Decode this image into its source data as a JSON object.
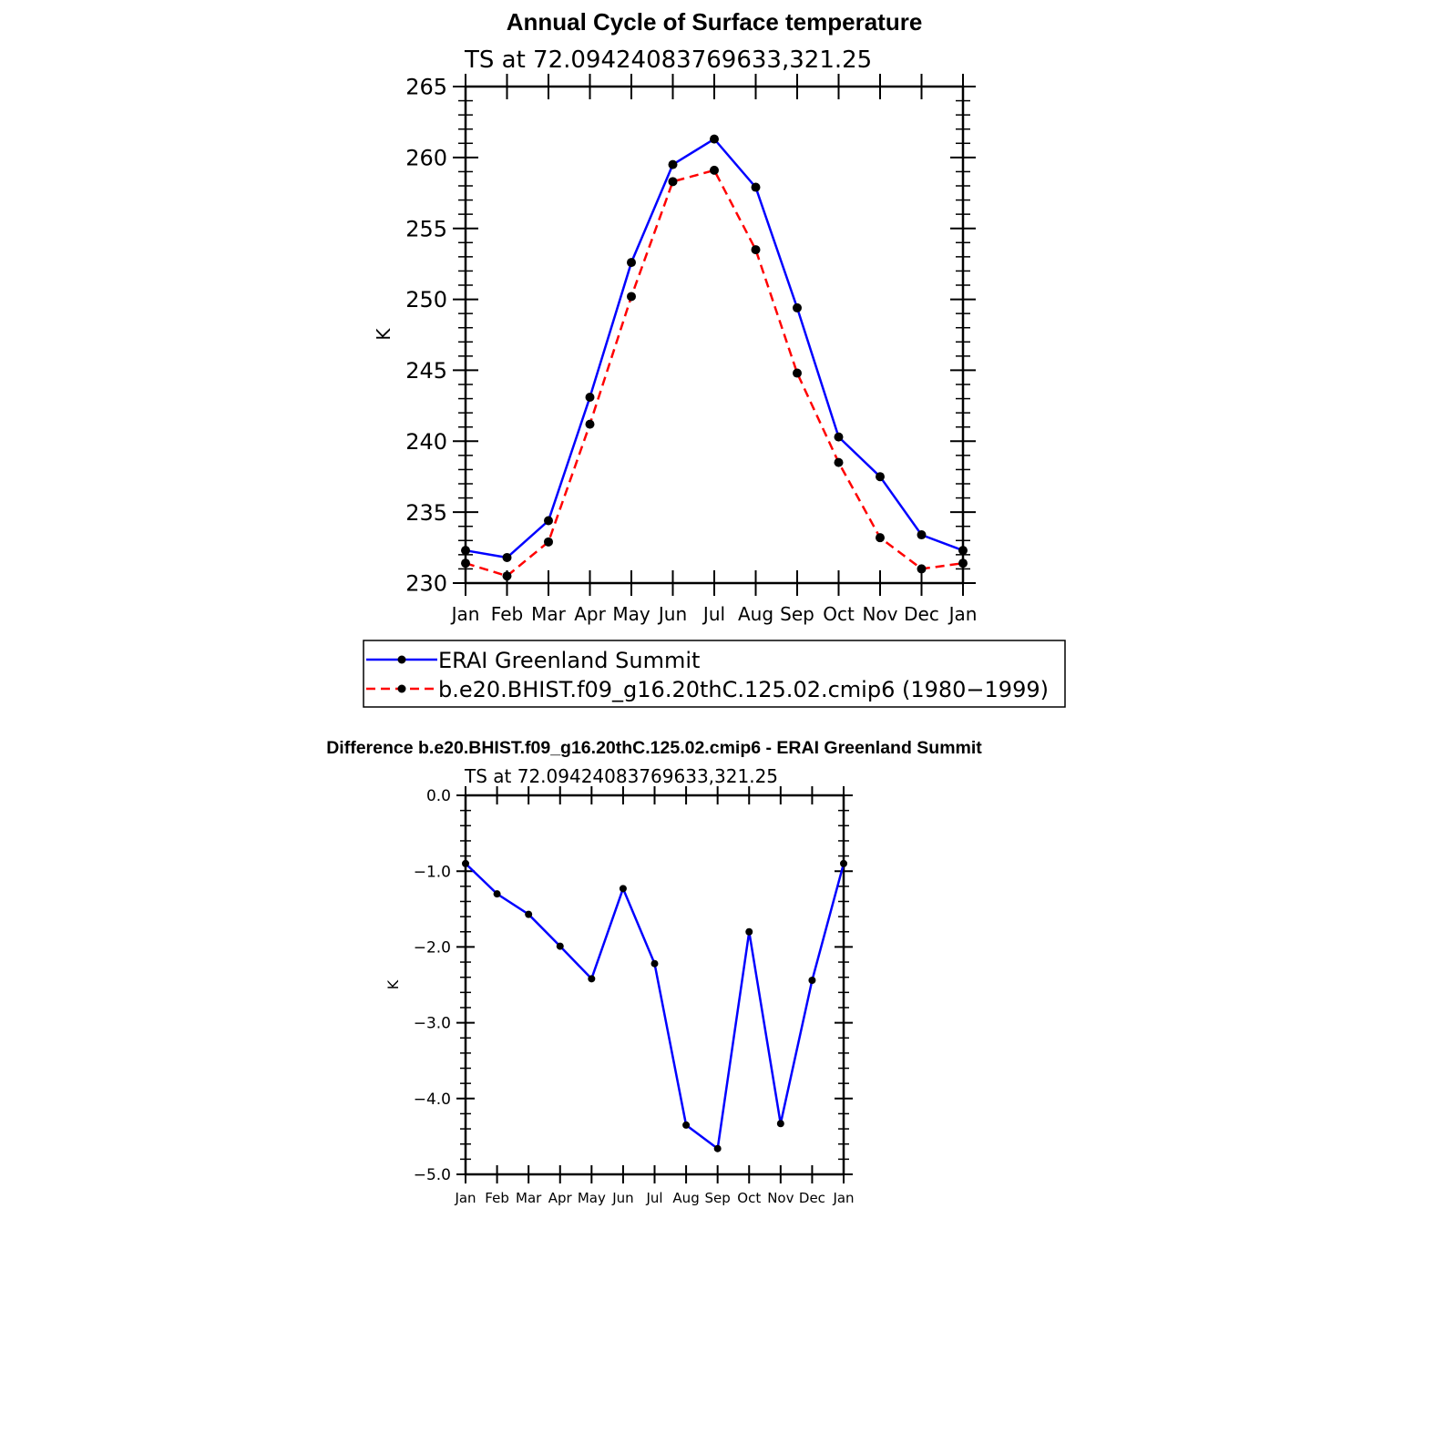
{
  "chart_data": [
    {
      "type": "line",
      "title": "Annual Cycle of Surface temperature",
      "subtitle": "TS at 72.09424083769633,321.25",
      "xlabel": "",
      "ylabel": "K",
      "categories": [
        "Jan",
        "Feb",
        "Mar",
        "Apr",
        "May",
        "Jun",
        "Jul",
        "Aug",
        "Sep",
        "Oct",
        "Nov",
        "Dec",
        "Jan"
      ],
      "ylim": [
        230,
        265
      ],
      "yticks": [
        "230",
        "235",
        "240",
        "245",
        "250",
        "255",
        "260",
        "265"
      ],
      "series": [
        {
          "name": "ERAI Greenland Summit",
          "color": "#0000ff",
          "dash": "solid",
          "values": [
            232.3,
            231.8,
            234.4,
            243.1,
            252.6,
            259.5,
            261.3,
            257.9,
            249.4,
            240.3,
            237.5,
            233.4,
            232.3
          ]
        },
        {
          "name": "b.e20.BHIST.f09_g16.20thC.125.02.cmip6 (1980−1999)",
          "color": "#ff0000",
          "dash": "dashed",
          "values": [
            231.4,
            230.5,
            232.9,
            241.2,
            250.2,
            258.3,
            259.1,
            253.5,
            244.8,
            238.5,
            233.2,
            231.0,
            231.4
          ]
        }
      ],
      "legend": "below"
    },
    {
      "type": "line",
      "title": "Difference b.e20.BHIST.f09_g16.20thC.125.02.cmip6 - ERAI Greenland Summit",
      "subtitle": "TS at 72.09424083769633,321.25",
      "xlabel": "",
      "ylabel": "K",
      "categories": [
        "Jan",
        "Feb",
        "Mar",
        "Apr",
        "May",
        "Jun",
        "Jul",
        "Aug",
        "Sep",
        "Oct",
        "Nov",
        "Dec",
        "Jan"
      ],
      "ylim": [
        -5.0,
        0.0
      ],
      "yticks": [
        "−5.0",
        "−4.0",
        "−3.0",
        "−2.0",
        "−1.0",
        "0.0"
      ],
      "series": [
        {
          "color": "#0000ff",
          "dash": "solid",
          "values": [
            -0.9,
            -1.3,
            -1.57,
            -1.99,
            -2.42,
            -1.23,
            -2.22,
            -4.35,
            -4.66,
            -1.8,
            -4.33,
            -2.44,
            -0.9
          ]
        }
      ]
    }
  ]
}
